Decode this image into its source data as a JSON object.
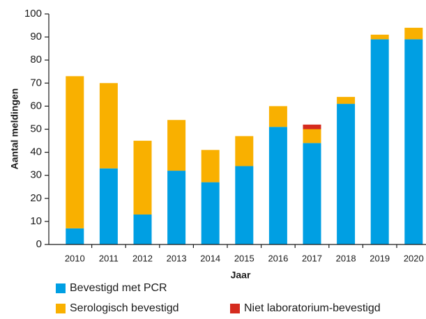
{
  "chart_data": {
    "type": "stacked_bar",
    "x_label": "Jaar",
    "y_label": "Aantal meldingen",
    "categories": [
      "2010",
      "2011",
      "2012",
      "2013",
      "2014",
      "2015",
      "2016",
      "2017",
      "2018",
      "2019",
      "2020"
    ],
    "series": [
      {
        "name": "Bevestigd met PCR",
        "color": "#009fe3",
        "values": [
          7,
          33,
          13,
          32,
          27,
          34,
          51,
          44,
          61,
          89,
          89
        ]
      },
      {
        "name": "Serologisch bevestigd",
        "color": "#f9b000",
        "values": [
          66,
          37,
          32,
          22,
          14,
          13,
          9,
          6,
          3,
          2,
          5
        ]
      },
      {
        "name": "Niet laboratorium-bevestigd",
        "color": "#d52b1e",
        "values": [
          0,
          0,
          0,
          0,
          0,
          0,
          0,
          2,
          0,
          0,
          0
        ]
      }
    ],
    "ylim": [
      0,
      100
    ],
    "yticks": [
      0,
      10,
      20,
      30,
      40,
      50,
      60,
      70,
      80,
      90,
      100
    ],
    "grid": false
  }
}
